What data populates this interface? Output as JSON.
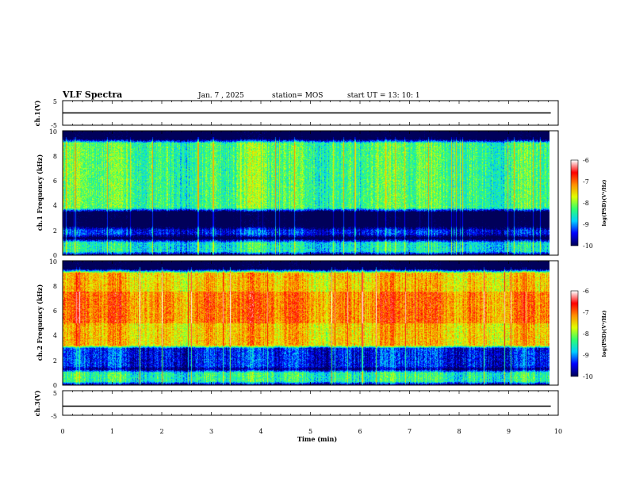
{
  "header": {
    "title": "VLF Spectra",
    "date": "Jan. 7 , 2025",
    "station": "station= MOS",
    "start": "start  UT =   13: 10: 1"
  },
  "colors": {
    "colormap": [
      "#00005a",
      "#0000ff",
      "#00d0ff",
      "#30ff70",
      "#e0ff00",
      "#ff9000",
      "#ff0000",
      "#ffffff"
    ],
    "trace": "#000000",
    "background": "#000000"
  },
  "chart_data": [
    {
      "type": "line",
      "panel": "ch1_waveform",
      "ylabel": "ch.1(V)",
      "ylim": [
        -5,
        5
      ],
      "ytick_labels": [
        "5",
        "-5"
      ],
      "trace_level": 0
    },
    {
      "type": "heatmap",
      "panel": "ch1_spectrogram",
      "ylabel": "ch.1 Frequency (kHz)",
      "ylim": [
        0,
        10
      ],
      "ytick_labels": [
        "0",
        "2",
        "4",
        "6",
        "8",
        "10"
      ],
      "colorbar": {
        "label": "log(PSD)(V²/Hz)",
        "range": [
          -10,
          -6
        ],
        "tick_labels": [
          "-6",
          "-7",
          "-8",
          "-9",
          "-10"
        ]
      },
      "bands": [
        {
          "f_range": [
            0.3,
            1.0
          ],
          "level": -8.4
        },
        {
          "f_range": [
            1.7,
            2.0
          ],
          "level": -9.3
        },
        {
          "f_range": [
            3.8,
            9.0
          ],
          "level": -8.0
        }
      ]
    },
    {
      "type": "heatmap",
      "panel": "ch2_spectrogram",
      "ylabel": "ch.2 Frequency (kHz)",
      "ylim": [
        0,
        10
      ],
      "ytick_labels": [
        "0",
        "2",
        "4",
        "6",
        "8",
        "10"
      ],
      "colorbar": {
        "label": "log(PSD)(V²/Hz)",
        "range": [
          -10,
          -6
        ],
        "tick_labels": [
          "-6",
          "-7",
          "-8",
          "-9",
          "-10"
        ]
      },
      "bands": [
        {
          "f_range": [
            0.3,
            1.0
          ],
          "level": -8.2
        },
        {
          "f_range": [
            1.5,
            3.2
          ],
          "level": -9.3
        },
        {
          "f_range": [
            3.2,
            9.0
          ],
          "level": -7.0
        },
        {
          "f_range": [
            5.0,
            7.5
          ],
          "level": -6.6
        }
      ]
    },
    {
      "type": "line",
      "panel": "ch3_waveform",
      "ylabel": "ch.3(V)",
      "ylim": [
        -5,
        5
      ],
      "ytick_labels": [
        "5",
        "-5"
      ],
      "trace_level": 0
    }
  ],
  "x_axis": {
    "label": "Time  (min)",
    "range": [
      0,
      10
    ],
    "tick_labels": [
      "0",
      "1",
      "2",
      "3",
      "4",
      "5",
      "6",
      "7",
      "8",
      "9",
      "10"
    ],
    "data_end": 9.85
  }
}
